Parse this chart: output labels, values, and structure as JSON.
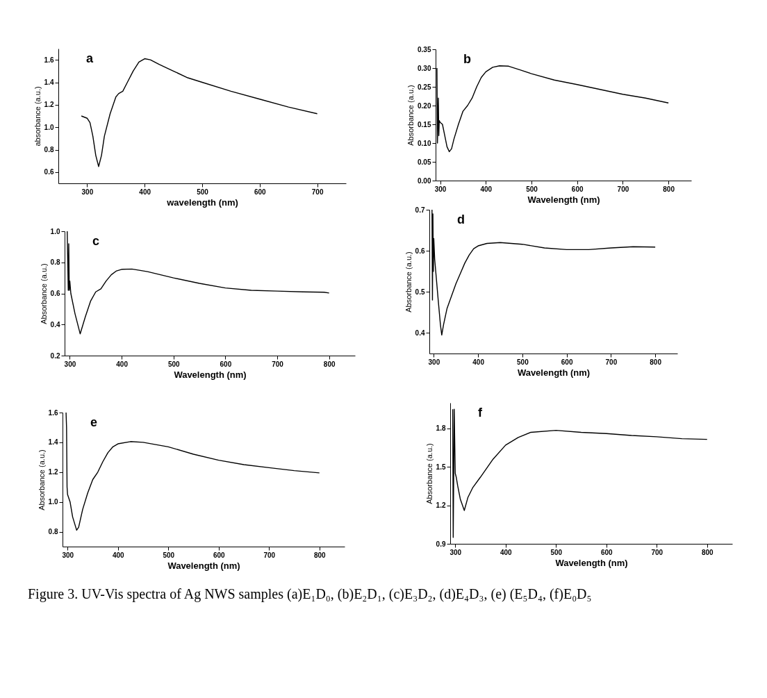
{
  "chart_data": [
    {
      "type": "line",
      "title": "a",
      "xlabel": "wavelength (nm)",
      "ylabel": "absorbance (a.u.)",
      "xlim": [
        250,
        750
      ],
      "ylim": [
        0.5,
        1.7
      ],
      "xticks": [
        300,
        400,
        500,
        600,
        700
      ],
      "yticks": [
        0.6,
        0.8,
        {
          "value": 1,
          "label": "1.0"
        },
        1.2,
        1.4,
        1.6
      ],
      "grid": false,
      "marker": "none",
      "line_style": "solid",
      "x": [
        290,
        300,
        305,
        310,
        315,
        320,
        325,
        330,
        340,
        350,
        355,
        362,
        370,
        380,
        390,
        400,
        410,
        425,
        450,
        475,
        500,
        550,
        600,
        650,
        700
      ],
      "series": [
        {
          "color": "#000000",
          "values": [
            1.1,
            1.08,
            1.04,
            0.92,
            0.75,
            0.65,
            0.75,
            0.92,
            1.12,
            1.27,
            1.3,
            1.32,
            1.4,
            1.5,
            1.58,
            1.61,
            1.6,
            1.56,
            1.5,
            1.44,
            1.4,
            1.32,
            1.25,
            1.18,
            1.12
          ]
        }
      ]
    },
    {
      "type": "line",
      "title": "b",
      "xlabel": "Wavelength (nm)",
      "ylabel": "Absorbance (a.u.)",
      "xlim": [
        290,
        850
      ],
      "ylim": [
        0,
        0.35
      ],
      "xticks": [
        300,
        400,
        500,
        600,
        700,
        800
      ],
      "yticks": [
        {
          "value": 0,
          "label": "0.00"
        },
        {
          "value": 0.05,
          "label": "0.05"
        },
        {
          "value": 0.1,
          "label": "0.10"
        },
        {
          "value": 0.15,
          "label": "0.15"
        },
        {
          "value": 0.2,
          "label": "0.20"
        },
        {
          "value": 0.25,
          "label": "0.25"
        },
        {
          "value": 0.3,
          "label": "0.30"
        },
        {
          "value": 0.35,
          "label": "0.35"
        }
      ],
      "grid": false,
      "marker": "none",
      "line_style": "solid",
      "x": [
        293,
        294,
        296,
        297,
        298,
        300,
        305,
        310,
        315,
        320,
        325,
        330,
        340,
        350,
        360,
        370,
        380,
        390,
        400,
        415,
        430,
        450,
        475,
        500,
        550,
        600,
        650,
        700,
        750,
        800
      ],
      "series": [
        {
          "color": "#000000",
          "values": [
            0.3,
            0.1,
            0.22,
            0.12,
            0.16,
            0.155,
            0.15,
            0.12,
            0.09,
            0.077,
            0.085,
            0.11,
            0.15,
            0.185,
            0.2,
            0.22,
            0.25,
            0.275,
            0.29,
            0.302,
            0.306,
            0.305,
            0.295,
            0.285,
            0.268,
            0.256,
            0.243,
            0.23,
            0.22,
            0.207
          ]
        }
      ]
    },
    {
      "type": "line",
      "title": "c",
      "xlabel": "Wavelength (nm)",
      "ylabel": "Absorbance (a.u.)",
      "xlim": [
        290,
        850
      ],
      "ylim": [
        0.2,
        1.0
      ],
      "xticks": [
        300,
        400,
        500,
        600,
        700,
        800
      ],
      "yticks": [
        0.2,
        0.4,
        0.6,
        0.8,
        {
          "value": 1,
          "label": "1.0"
        }
      ],
      "grid": false,
      "marker": "none",
      "line_style": "solid",
      "x": [
        295,
        297,
        298,
        299,
        300,
        302,
        310,
        320,
        330,
        340,
        350,
        360,
        370,
        380,
        390,
        400,
        420,
        450,
        500,
        550,
        600,
        650,
        700,
        750,
        790,
        800
      ],
      "series": [
        {
          "color": "#000000",
          "values": [
            1.0,
            0.62,
            0.92,
            0.62,
            0.68,
            0.6,
            0.47,
            0.34,
            0.45,
            0.55,
            0.61,
            0.63,
            0.68,
            0.72,
            0.745,
            0.755,
            0.757,
            0.74,
            0.7,
            0.665,
            0.635,
            0.62,
            0.615,
            0.61,
            0.608,
            0.603
          ]
        }
      ]
    },
    {
      "type": "line",
      "title": "d",
      "xlabel": "Wavelength (nm)",
      "ylabel": "Absorbance (a.u.)",
      "xlim": [
        290,
        850
      ],
      "ylim": [
        0.35,
        0.7
      ],
      "xticks": [
        300,
        400,
        500,
        600,
        700,
        800
      ],
      "yticks": [
        0.4,
        0.5,
        0.6,
        0.7
      ],
      "grid": false,
      "marker": "none",
      "line_style": "solid",
      "x": [
        296,
        297,
        298,
        299,
        300,
        302,
        310,
        315,
        318,
        322,
        330,
        340,
        350,
        360,
        370,
        380,
        390,
        400,
        420,
        450,
        500,
        550,
        600,
        650,
        700,
        750,
        800
      ],
      "series": [
        {
          "color": "#000000",
          "values": [
            0.7,
            0.48,
            0.69,
            0.55,
            0.63,
            0.58,
            0.48,
            0.42,
            0.395,
            0.42,
            0.46,
            0.49,
            0.52,
            0.545,
            0.57,
            0.59,
            0.605,
            0.612,
            0.618,
            0.62,
            0.616,
            0.607,
            0.603,
            0.603,
            0.607,
            0.61,
            0.609
          ]
        }
      ]
    },
    {
      "type": "line",
      "title": "e",
      "xlabel": "Wavelength (nm)",
      "ylabel": "Absorbance (a.u.)",
      "xlim": [
        290,
        850
      ],
      "ylim": [
        0.7,
        1.6
      ],
      "xticks": [
        300,
        400,
        500,
        600,
        700,
        800
      ],
      "yticks": [
        0.8,
        {
          "value": 1,
          "label": "1.0"
        },
        1.2,
        1.4,
        1.6
      ],
      "grid": false,
      "marker": "none",
      "line_style": "solid",
      "x": [
        297,
        298,
        299,
        300,
        305,
        310,
        318,
        322,
        330,
        340,
        350,
        360,
        370,
        380,
        390,
        400,
        425,
        450,
        500,
        550,
        600,
        650,
        700,
        750,
        800
      ],
      "series": [
        {
          "color": "#000000",
          "values": [
            1.6,
            1.5,
            1.1,
            1.05,
            1.0,
            0.9,
            0.81,
            0.83,
            0.95,
            1.06,
            1.15,
            1.2,
            1.27,
            1.33,
            1.37,
            1.39,
            1.405,
            1.4,
            1.37,
            1.32,
            1.28,
            1.25,
            1.23,
            1.21,
            1.195
          ]
        }
      ]
    },
    {
      "type": "line",
      "title": "f",
      "xlabel": "Wavelength (nm)",
      "ylabel": "Absorbance (a.u.)",
      "xlim": [
        290,
        850
      ],
      "ylim": [
        0.9,
        2.0
      ],
      "xticks": [
        300,
        400,
        500,
        600,
        700,
        800
      ],
      "yticks": [
        0.9,
        1.2,
        1.5,
        1.8
      ],
      "grid": false,
      "marker": "none",
      "line_style": "solid",
      "x": [
        295,
        296,
        298,
        300,
        302,
        305,
        310,
        318,
        325,
        335,
        350,
        375,
        400,
        425,
        450,
        500,
        550,
        600,
        650,
        700,
        750,
        800
      ],
      "series": [
        {
          "color": "#000000",
          "values": [
            1.95,
            0.95,
            1.95,
            1.45,
            1.42,
            1.35,
            1.25,
            1.16,
            1.26,
            1.34,
            1.42,
            1.56,
            1.67,
            1.73,
            1.77,
            1.785,
            1.77,
            1.76,
            1.745,
            1.735,
            1.72,
            1.715
          ]
        }
      ],
      "annotations": [
        "Figure 3.  UV-Vis spectra of Ag NWS samples (a)E₁D₀, (b)E₂D₁, (c)E₃D₂, (d)E₄D₃, (e) (E₅D₄, (f)E₀D₅"
      ]
    }
  ]
}
